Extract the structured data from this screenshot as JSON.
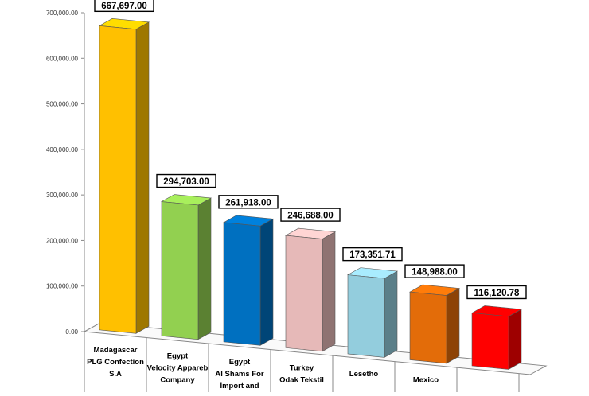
{
  "chart_data": {
    "type": "bar",
    "style": "3d-column",
    "categories": [
      [
        "Madagascar",
        "PLG Confection",
        "S.A"
      ],
      [
        "Egypt",
        "Velocity Appareb",
        "Company"
      ],
      [
        "Egypt",
        "Al Shams For",
        "Import and"
      ],
      [
        "Turkey",
        "Odak Tekstil"
      ],
      [
        "Lesetho"
      ],
      [
        "Mexico"
      ],
      [
        ""
      ]
    ],
    "values": [
      667697.0,
      294703.0,
      261918.0,
      246688.0,
      173351.71,
      148988.0,
      116120.78
    ],
    "data_labels": [
      "667,697.00",
      "294,703.00",
      "261,918.00",
      "246,688.00",
      "173,351.71",
      "148,988.00",
      "116,120.78"
    ],
    "colors": [
      "#FFC000",
      "#92D050",
      "#0070C0",
      "#E6B9B8",
      "#93CDDD",
      "#E36C09",
      "#FF0000"
    ],
    "ylim": [
      0,
      700000
    ],
    "yticks": [
      0,
      100000,
      200000,
      300000,
      400000,
      500000,
      600000,
      700000
    ],
    "ytick_labels": [
      "0.00",
      "100,000.00",
      "200,000.00",
      "300,000.00",
      "400,000.00",
      "500,000.00",
      "600,000.00",
      "700,000.00"
    ],
    "grid": false,
    "legend": "none",
    "title": "",
    "xlabel": "",
    "ylabel": ""
  }
}
